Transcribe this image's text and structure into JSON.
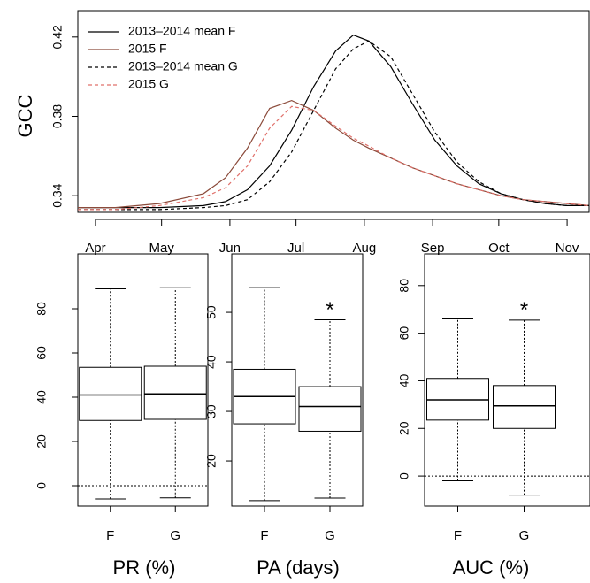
{
  "chart_data": [
    {
      "type": "line",
      "ylabel": "GCC",
      "x": [
        83,
        100,
        120,
        140,
        150,
        160,
        170,
        180,
        190,
        200,
        208,
        215,
        225,
        235,
        245,
        255,
        265,
        275,
        285,
        295,
        305,
        315
      ],
      "xlim": [
        83,
        315
      ],
      "xticks": [
        {
          "value": 91,
          "label": "Apr"
        },
        {
          "value": 121,
          "label": "May"
        },
        {
          "value": 152,
          "label": "Jun"
        },
        {
          "value": 182,
          "label": "Jul"
        },
        {
          "value": 213,
          "label": "Aug"
        },
        {
          "value": 244,
          "label": "Sep"
        },
        {
          "value": 274,
          "label": "Oct"
        },
        {
          "value": 305,
          "label": "Nov"
        }
      ],
      "ylim": [
        0.3316,
        0.4333
      ],
      "yticks": [
        0.34,
        0.38,
        0.42
      ],
      "legend": "top-left",
      "series": [
        {
          "name": "2013–2014 mean F",
          "color": "#000000",
          "dash": false,
          "values": [
            0.334,
            0.334,
            0.334,
            0.335,
            0.337,
            0.343,
            0.355,
            0.373,
            0.395,
            0.413,
            0.421,
            0.418,
            0.405,
            0.386,
            0.368,
            0.355,
            0.346,
            0.341,
            0.338,
            0.336,
            0.335,
            0.335
          ]
        },
        {
          "name": "2015 F",
          "color": "#8b4a3a",
          "dash": false,
          "values": [
            0.334,
            0.334,
            0.336,
            0.341,
            0.349,
            0.364,
            0.384,
            0.388,
            0.383,
            0.374,
            0.368,
            0.364,
            0.359,
            0.354,
            0.35,
            0.346,
            0.343,
            0.34,
            0.338,
            0.337,
            0.336,
            0.335
          ]
        },
        {
          "name": "2013–2014 mean G",
          "color": "#000000",
          "dash": true,
          "values": [
            0.333,
            0.333,
            0.333,
            0.334,
            0.335,
            0.338,
            0.347,
            0.362,
            0.383,
            0.404,
            0.414,
            0.418,
            0.41,
            0.391,
            0.372,
            0.357,
            0.347,
            0.341,
            0.338,
            0.336,
            0.335,
            0.335
          ]
        },
        {
          "name": "2015 G",
          "color": "#e0706a",
          "dash": true,
          "values": [
            0.333,
            0.333,
            0.335,
            0.339,
            0.344,
            0.355,
            0.374,
            0.385,
            0.383,
            0.375,
            0.369,
            0.365,
            0.359,
            0.354,
            0.35,
            0.346,
            0.343,
            0.34,
            0.338,
            0.337,
            0.336,
            0.335
          ]
        }
      ]
    },
    {
      "type": "box",
      "xlabel": "PR (%)",
      "categories": [
        "F",
        "G"
      ],
      "ylim": [
        -9.2,
        104.8
      ],
      "yticks": [
        0,
        20,
        40,
        60,
        80
      ],
      "reference_line": 0,
      "boxes": [
        {
          "min": -6,
          "q1": 29.5,
          "median": 41,
          "q3": 53.5,
          "max": 89
        },
        {
          "min": -5.5,
          "q1": 30,
          "median": 41.5,
          "q3": 54,
          "max": 89.5
        }
      ],
      "annotations": [
        null,
        null
      ]
    },
    {
      "type": "box",
      "xlabel": "PA (days)",
      "categories": [
        "F",
        "G"
      ],
      "ylim": [
        10.9,
        61.8
      ],
      "yticks": [
        20,
        30,
        40,
        50
      ],
      "reference_line": null,
      "boxes": [
        {
          "min": 12,
          "q1": 27.5,
          "median": 33,
          "q3": 38.5,
          "max": 55
        },
        {
          "min": 12.5,
          "q1": 26,
          "median": 31,
          "q3": 35,
          "max": 48.5
        }
      ],
      "annotations": [
        null,
        "*"
      ]
    },
    {
      "type": "box",
      "xlabel": "AUC (%)",
      "categories": [
        "F",
        "G"
      ],
      "ylim": [
        -12.6,
        93.3
      ],
      "yticks": [
        0,
        20,
        40,
        60,
        80
      ],
      "reference_line": 0,
      "boxes": [
        {
          "min": -2,
          "q1": 23.5,
          "median": 32,
          "q3": 41,
          "max": 66
        },
        {
          "min": -8,
          "q1": 20,
          "median": 29.5,
          "q3": 38,
          "max": 65.5
        }
      ],
      "annotations": [
        null,
        "*"
      ]
    }
  ]
}
